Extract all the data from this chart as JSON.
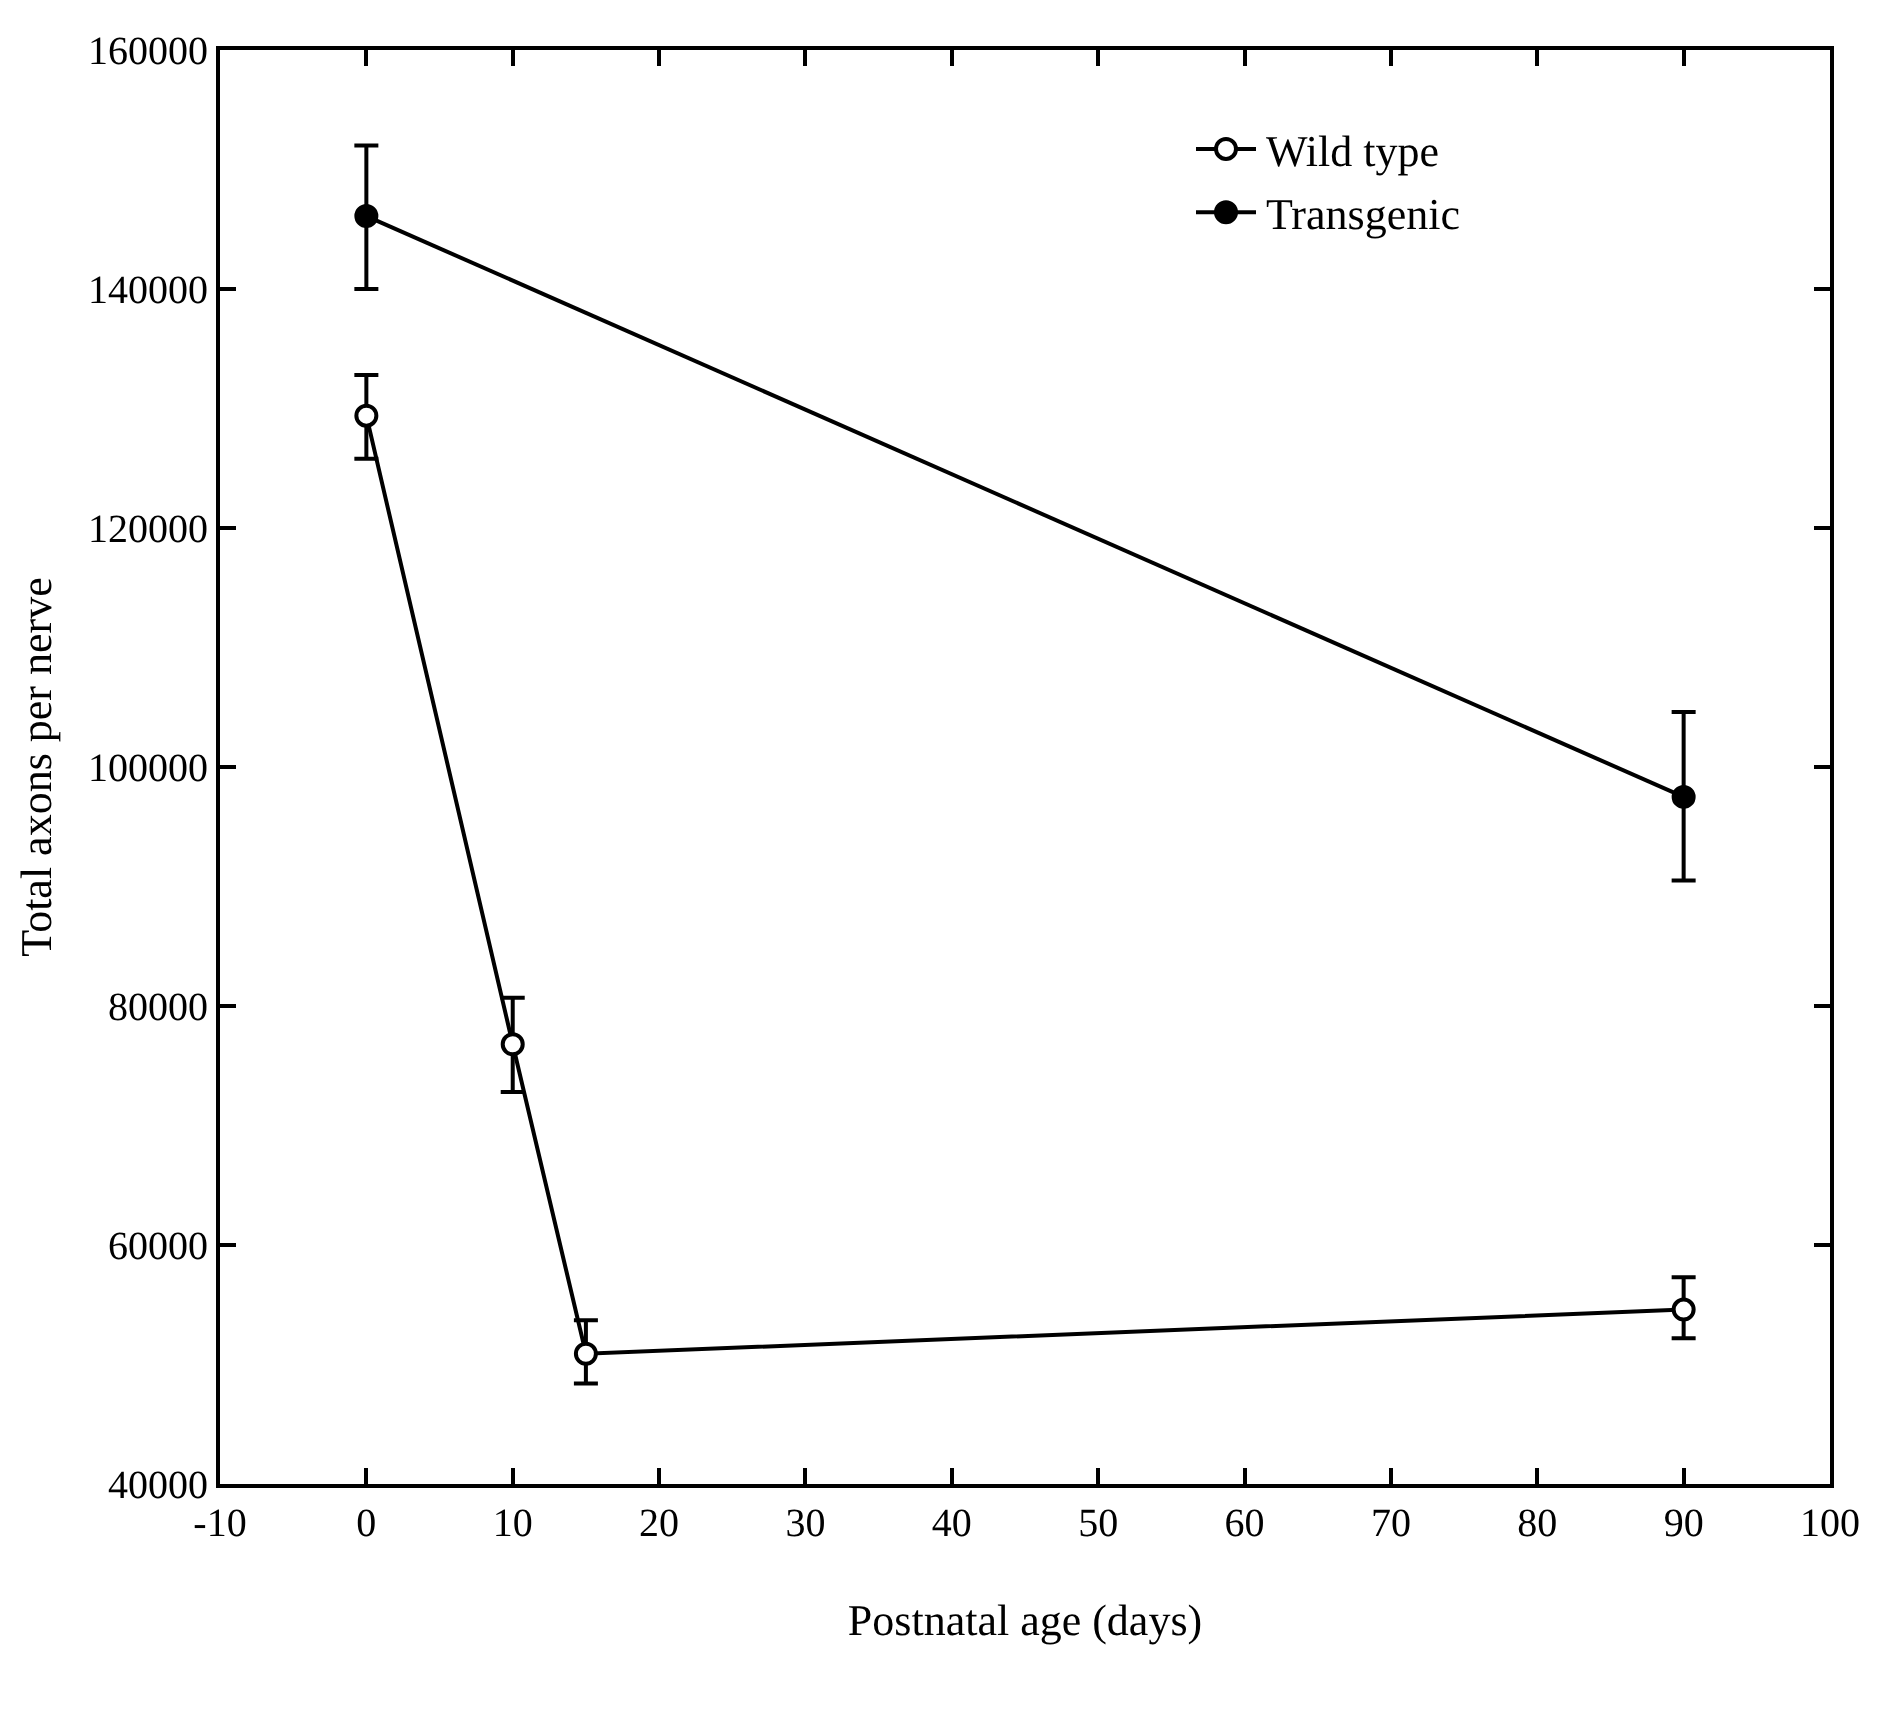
{
  "chart_data": {
    "type": "line",
    "xlabel": "Postnatal age (days)",
    "ylabel": "Total axons per nerve",
    "xlim": [
      -10,
      100
    ],
    "xticks": [
      -10,
      0,
      10,
      20,
      30,
      40,
      50,
      60,
      70,
      80,
      90,
      100
    ],
    "ylim": [
      40000,
      160000
    ],
    "yticks": [
      40000,
      60000,
      80000,
      100000,
      120000,
      140000,
      160000
    ],
    "legend": "top right",
    "line_style": "solid",
    "series": [
      {
        "name": "Wild type",
        "color": "#000000",
        "marker": "circle-open",
        "x": [
          0,
          10,
          15,
          90
        ],
        "values": [
          129400,
          76800,
          50900,
          54600
        ],
        "errors": [
          [
            125800,
            132800
          ],
          [
            72800,
            80700
          ],
          [
            48400,
            53700
          ],
          [
            52200,
            57300
          ]
        ]
      },
      {
        "name": "Transgenic",
        "color": "#000000",
        "marker": "circle",
        "x": [
          0,
          90
        ],
        "values": [
          146100,
          97500
        ],
        "errors": [
          [
            140000,
            152000
          ],
          [
            90500,
            104600
          ]
        ]
      }
    ]
  }
}
